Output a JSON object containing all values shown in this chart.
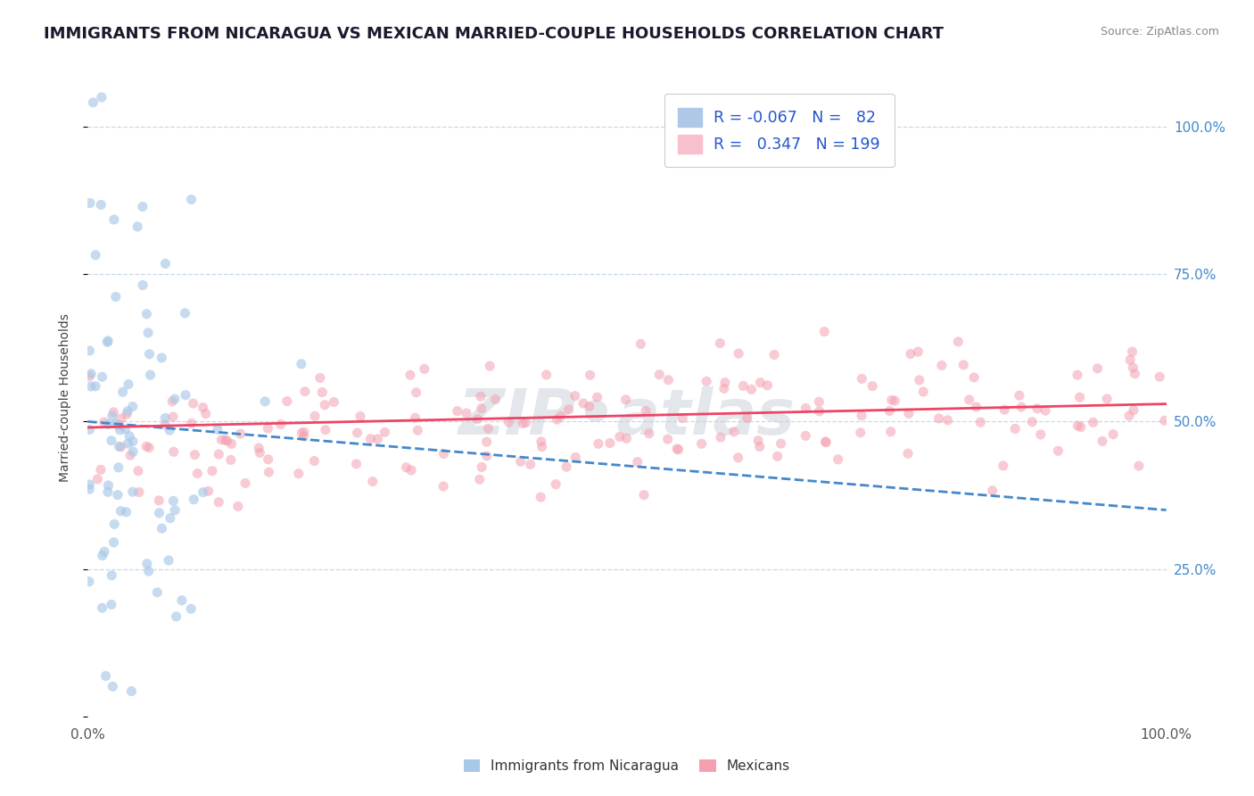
{
  "title": "IMMIGRANTS FROM NICARAGUA VS MEXICAN MARRIED-COUPLE HOUSEHOLDS CORRELATION CHART",
  "source": "Source: ZipAtlas.com",
  "ylabel": "Married-couple Households",
  "y_ticks": [
    0.0,
    0.25,
    0.5,
    0.75,
    1.0
  ],
  "y_tick_labels": [
    "",
    "25.0%",
    "50.0%",
    "75.0%",
    "100.0%"
  ],
  "x_lim": [
    0.0,
    1.0
  ],
  "y_lim": [
    0.0,
    1.08
  ],
  "scatter_blue_R": -0.067,
  "scatter_blue_N": 82,
  "scatter_pink_R": 0.347,
  "scatter_pink_N": 199,
  "blue_color": "#a8c8e8",
  "pink_color": "#f4a0b0",
  "blue_line_color": "#4488cc",
  "pink_line_color": "#ee4466",
  "background_color": "#ffffff",
  "grid_color": "#c8d8e8",
  "title_fontsize": 13,
  "axis_label_fontsize": 10,
  "tick_fontsize": 11
}
